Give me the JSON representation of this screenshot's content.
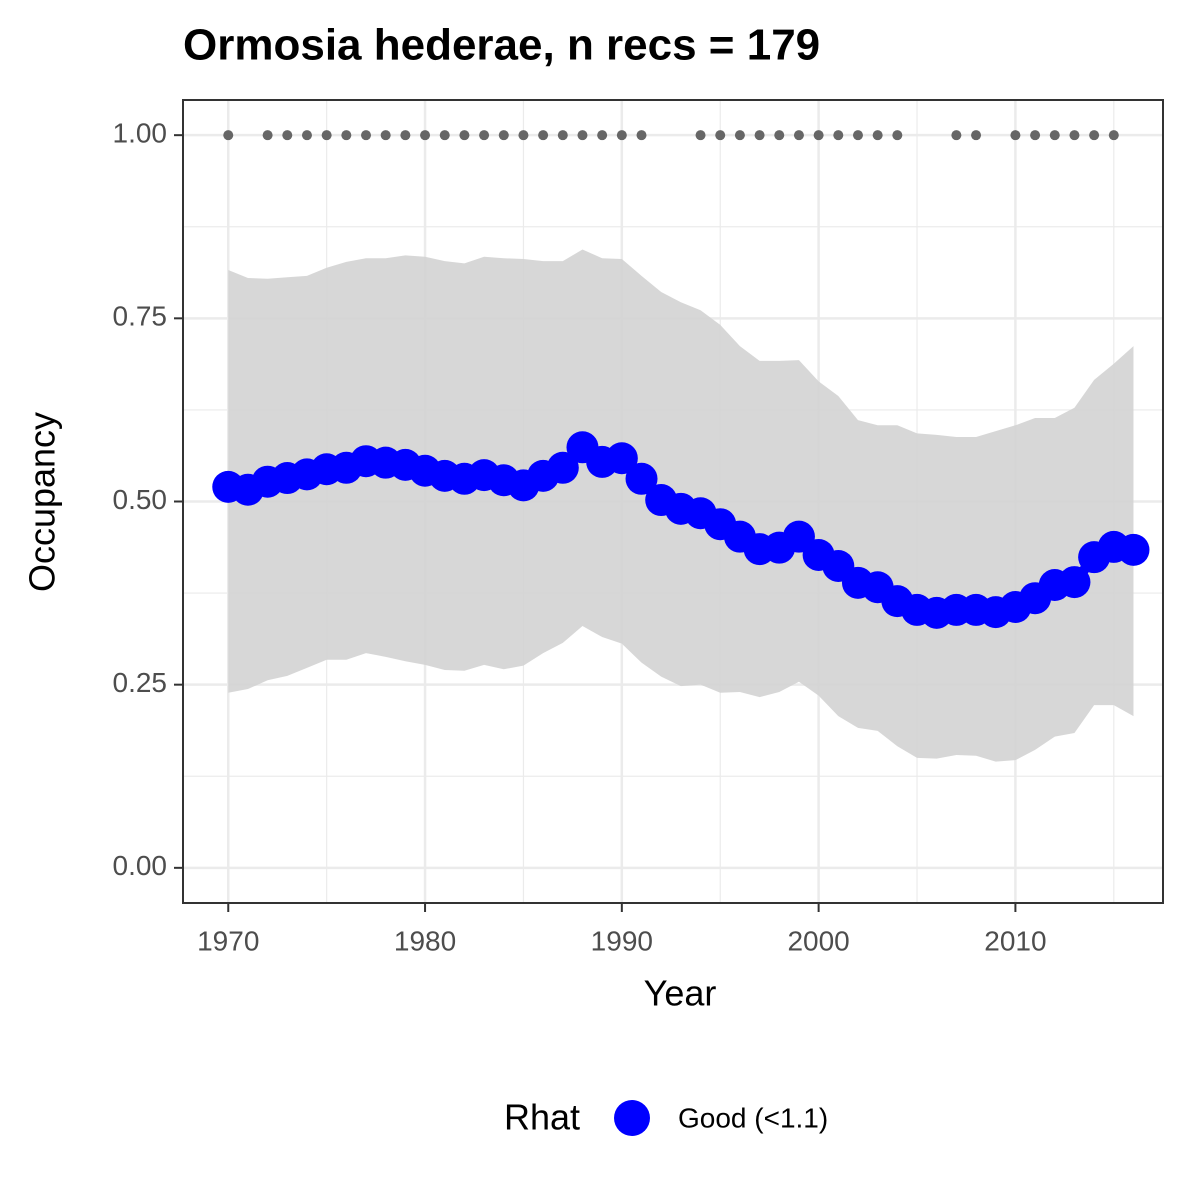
{
  "chart_data": {
    "type": "line",
    "title": "Ormosia hederae, n recs = 179",
    "x_label": "Year",
    "y_label": "Occupancy",
    "legend_title": "Rhat",
    "legend_position": "bottom",
    "grid": true,
    "minor_grid": true,
    "xlim": [
      1967.7,
      2017.5
    ],
    "ylim": [
      -0.048,
      1.048
    ],
    "xticks": [
      1970,
      1980,
      1990,
      2000,
      2010
    ],
    "yticks": [
      {
        "value": 0,
        "label": "0.00"
      },
      0.25,
      {
        "value": 0.5,
        "label": "0.50"
      },
      0.75,
      {
        "value": 1,
        "label": "1.00"
      }
    ],
    "x": [
      1970,
      1971,
      1972,
      1973,
      1974,
      1975,
      1976,
      1977,
      1978,
      1979,
      1980,
      1981,
      1982,
      1983,
      1984,
      1985,
      1986,
      1987,
      1988,
      1989,
      1990,
      1991,
      1992,
      1993,
      1994,
      1995,
      1996,
      1997,
      1998,
      1999,
      2000,
      2001,
      2002,
      2003,
      2004,
      2005,
      2006,
      2007,
      2008,
      2009,
      2010,
      2011,
      2012,
      2013,
      2014,
      2015,
      2016
    ],
    "series": [
      {
        "name": "Good (<1.1)",
        "color": "#0000ff",
        "values": [
          0.52,
          0.516,
          0.527,
          0.532,
          0.537,
          0.544,
          0.546,
          0.555,
          0.553,
          0.55,
          0.542,
          0.535,
          0.531,
          0.536,
          0.529,
          0.522,
          0.535,
          0.546,
          0.574,
          0.554,
          0.559,
          0.531,
          0.502,
          0.49,
          0.484,
          0.469,
          0.452,
          0.435,
          0.437,
          0.452,
          0.427,
          0.412,
          0.389,
          0.383,
          0.364,
          0.352,
          0.348,
          0.352,
          0.352,
          0.349,
          0.356,
          0.368,
          0.386,
          0.39,
          0.424,
          0.438,
          0.434
        ]
      }
    ],
    "ribbon": {
      "color": "#d3d3d3",
      "upper": [
        0.816,
        0.805,
        0.804,
        0.806,
        0.808,
        0.819,
        0.827,
        0.832,
        0.832,
        0.836,
        0.834,
        0.828,
        0.825,
        0.834,
        0.832,
        0.831,
        0.828,
        0.828,
        0.844,
        0.832,
        0.831,
        0.808,
        0.786,
        0.772,
        0.761,
        0.741,
        0.712,
        0.692,
        0.692,
        0.693,
        0.664,
        0.644,
        0.611,
        0.604,
        0.604,
        0.593,
        0.591,
        0.588,
        0.588,
        0.596,
        0.604,
        0.614,
        0.614,
        0.628,
        0.666,
        0.688,
        0.712
      ],
      "lower": [
        0.239,
        0.244,
        0.256,
        0.262,
        0.273,
        0.284,
        0.284,
        0.293,
        0.288,
        0.282,
        0.277,
        0.27,
        0.269,
        0.277,
        0.271,
        0.276,
        0.293,
        0.307,
        0.33,
        0.315,
        0.306,
        0.28,
        0.261,
        0.248,
        0.25,
        0.239,
        0.24,
        0.233,
        0.24,
        0.254,
        0.235,
        0.207,
        0.191,
        0.187,
        0.166,
        0.15,
        0.149,
        0.154,
        0.153,
        0.145,
        0.147,
        0.161,
        0.179,
        0.184,
        0.222,
        0.222,
        0.207
      ]
    },
    "records": {
      "color": "#666666",
      "x": [
        1970,
        1972,
        1973,
        1974,
        1975,
        1976,
        1977,
        1978,
        1979,
        1980,
        1981,
        1982,
        1983,
        1984,
        1985,
        1986,
        1987,
        1988,
        1989,
        1990,
        1991,
        1994,
        1995,
        1996,
        1997,
        1998,
        1999,
        2000,
        2001,
        2002,
        2003,
        2004,
        2007,
        2008,
        2010,
        2011,
        2012,
        2013,
        2014,
        2015
      ],
      "values": [
        1,
        1,
        1,
        1,
        1,
        1,
        1,
        1,
        1,
        1,
        1,
        1,
        1,
        1,
        1,
        1,
        1,
        1,
        1,
        1,
        1,
        1,
        1,
        1,
        1,
        1,
        1,
        1,
        1,
        1,
        1,
        1,
        1,
        1,
        1,
        1,
        1,
        1,
        1,
        1
      ]
    }
  }
}
